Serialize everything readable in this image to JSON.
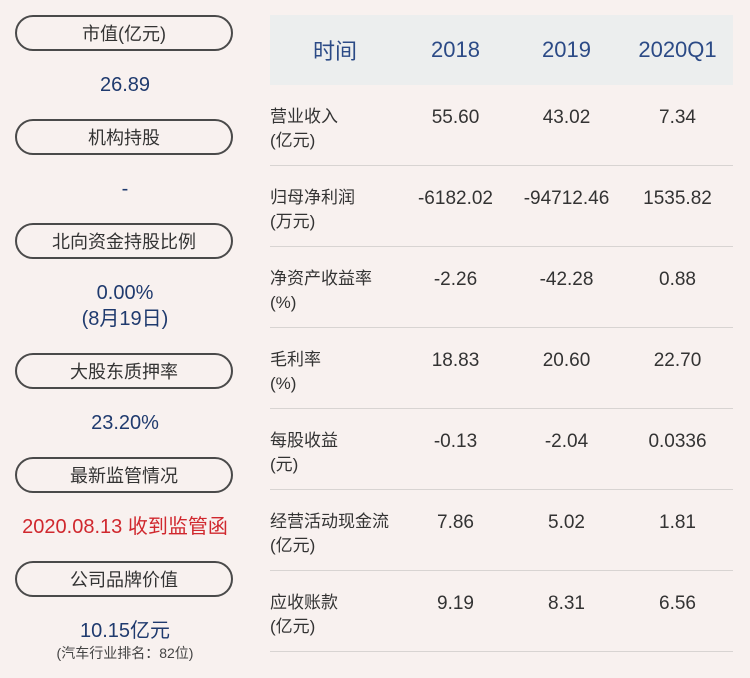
{
  "left_panel": {
    "market_cap": {
      "label": "市值(亿元)",
      "value": "26.89"
    },
    "institution": {
      "label": "机构持股",
      "value": "-"
    },
    "northbound": {
      "label": "北向资金持股比例",
      "value": "0.00%",
      "date": "(8月19日)"
    },
    "pledge": {
      "label": "大股东质押率",
      "value": "23.20%"
    },
    "regulation": {
      "label": "最新监管情况",
      "value": "2020.08.13 收到监管函"
    },
    "brand": {
      "label": "公司品牌价值",
      "value": "10.15亿元",
      "note": "(汽车行业排名：82位)"
    }
  },
  "table": {
    "headers": [
      "时间",
      "2018",
      "2019",
      "2020Q1"
    ],
    "rows": [
      {
        "label": "营业收入",
        "unit": "(亿元)",
        "values": [
          "55.60",
          "43.02",
          "7.34"
        ]
      },
      {
        "label": "归母净利润",
        "unit": "(万元)",
        "values": [
          "-6182.02",
          "-94712.46",
          "1535.82"
        ]
      },
      {
        "label": "净资产收益率",
        "unit": "(%)",
        "values": [
          "-2.26",
          "-42.28",
          "0.88"
        ]
      },
      {
        "label": "毛利率",
        "unit": "(%)",
        "values": [
          "18.83",
          "20.60",
          "22.70"
        ]
      },
      {
        "label": "每股收益",
        "unit": "(元)",
        "values": [
          "-0.13",
          "-2.04",
          "0.0336"
        ]
      },
      {
        "label": "经营活动现金流",
        "unit": "(亿元)",
        "values": [
          "7.86",
          "5.02",
          "1.81"
        ]
      },
      {
        "label": "应收账款",
        "unit": "(亿元)",
        "values": [
          "9.19",
          "8.31",
          "6.56"
        ]
      }
    ]
  },
  "colors": {
    "background": "#f8f1ef",
    "value_blue": "#1f3a6e",
    "header_blue": "#2b4a86",
    "alert_red": "#d0282e"
  }
}
